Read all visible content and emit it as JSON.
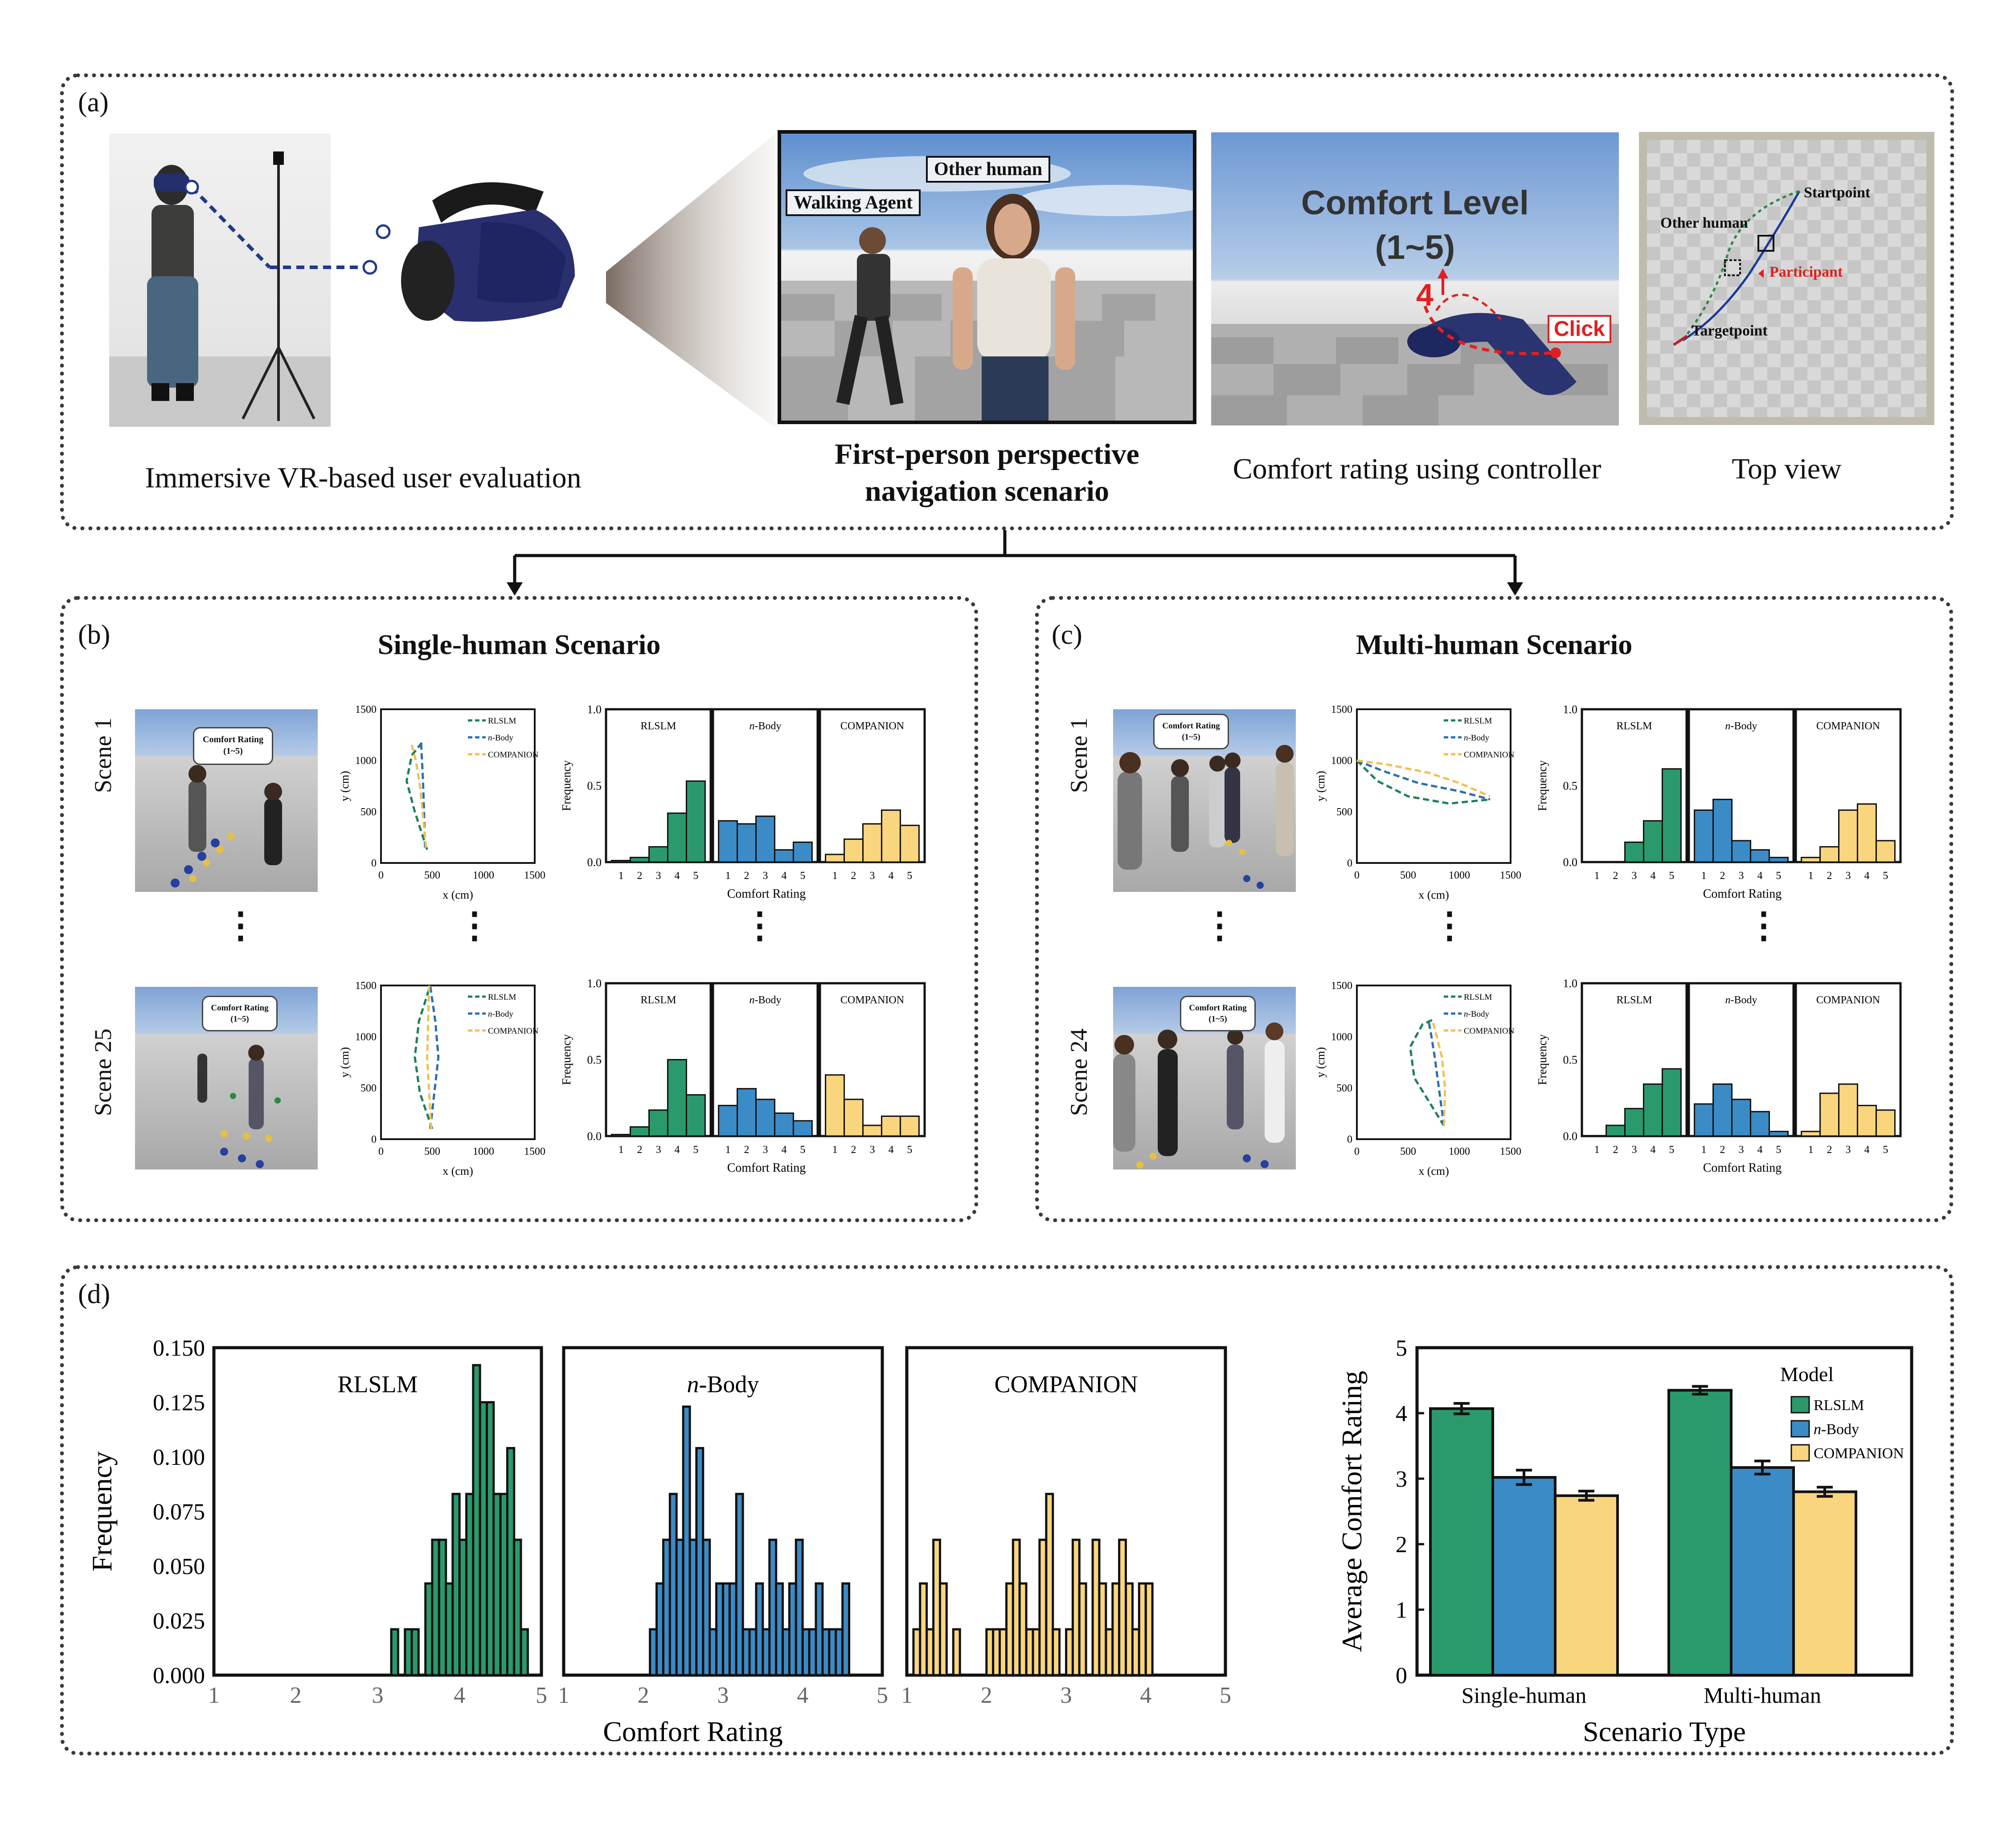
{
  "colors": {
    "rlslm": "#2a9a6c",
    "nbody": "#3b8bc6",
    "companion": "#f9d57e",
    "border": "#3a3a3a"
  },
  "panel_a": {
    "label": "(a)",
    "caption_vr": "Immersive VR-based user evaluation",
    "caption_fp_line1": "First-person perspective",
    "caption_fp_line2": "navigation scenario",
    "caption_comfort": "Comfort rating using controller",
    "caption_top": "Top view",
    "fp_tag_other": "Other human",
    "fp_tag_agent": "Walking Agent",
    "comfort_title": "Comfort Level",
    "comfort_range": "(1~5)",
    "comfort_value": "4",
    "comfort_click": "Click",
    "top_startpoint": "Startpoint",
    "top_other": "Other human",
    "top_participant": "Participant",
    "top_targetpoint": "Targetpoint"
  },
  "panel_b": {
    "label": "(b)",
    "title": "Single-human Scenario",
    "scene_top": "Scene 1",
    "scene_bottom": "Scene 25",
    "bubble_line1": "Comfort Rating",
    "bubble_line2": "(1~5)"
  },
  "panel_c": {
    "label": "(c)",
    "title": "Multi-human Scenario",
    "scene_top": "Scene 1",
    "scene_bottom": "Scene 24",
    "bubble_line1": "Comfort Rating",
    "bubble_line2": "(1~5)"
  },
  "panel_d": {
    "label": "(d)"
  },
  "mini": {
    "traj_xlabel": "x (cm)",
    "traj_ylabel": "y (cm)",
    "traj_xticks": [
      "0",
      "500",
      "1000",
      "1500"
    ],
    "traj_yticks": [
      "0",
      "500",
      "1000",
      "1500"
    ],
    "legend": [
      "RLSLM",
      "n-Body",
      "COMPANION"
    ],
    "freq_label": "Frequency",
    "xlabel": "Comfort Rating",
    "freq_ticks": [
      "0.0",
      "0.5",
      "1.0"
    ],
    "xticks": [
      "1",
      "2",
      "3",
      "4",
      "5"
    ],
    "names": [
      "RLSLM",
      "n-Body",
      "COMPANION"
    ]
  },
  "chart_data": [
    {
      "type": "bar",
      "id": "b-scene1-hist",
      "categories": [
        "1",
        "2",
        "3",
        "4",
        "5"
      ],
      "ylabel": "Frequency",
      "xlabel": "Comfort Rating",
      "ylim": [
        0,
        1
      ],
      "series": [
        {
          "name": "RLSLM",
          "values": [
            0.01,
            0.03,
            0.1,
            0.32,
            0.53
          ]
        },
        {
          "name": "n-Body",
          "values": [
            0.27,
            0.25,
            0.3,
            0.08,
            0.13
          ]
        },
        {
          "name": "COMPANION",
          "values": [
            0.05,
            0.15,
            0.25,
            0.34,
            0.24
          ]
        }
      ]
    },
    {
      "type": "bar",
      "id": "b-scene25-hist",
      "categories": [
        "1",
        "2",
        "3",
        "4",
        "5"
      ],
      "ylabel": "Frequency",
      "xlabel": "Comfort Rating",
      "ylim": [
        0,
        1
      ],
      "series": [
        {
          "name": "RLSLM",
          "values": [
            0.01,
            0.06,
            0.17,
            0.5,
            0.27
          ]
        },
        {
          "name": "n-Body",
          "values": [
            0.2,
            0.31,
            0.24,
            0.15,
            0.1
          ]
        },
        {
          "name": "COMPANION",
          "values": [
            0.4,
            0.24,
            0.07,
            0.13,
            0.13
          ]
        }
      ]
    },
    {
      "type": "bar",
      "id": "c-scene1-hist",
      "categories": [
        "1",
        "2",
        "3",
        "4",
        "5"
      ],
      "ylabel": "Frequency",
      "xlabel": "Comfort Rating",
      "ylim": [
        0,
        1
      ],
      "series": [
        {
          "name": "RLSLM",
          "values": [
            0.0,
            0.0,
            0.13,
            0.27,
            0.61
          ]
        },
        {
          "name": "n-Body",
          "values": [
            0.34,
            0.41,
            0.14,
            0.08,
            0.03
          ]
        },
        {
          "name": "COMPANION",
          "values": [
            0.03,
            0.1,
            0.34,
            0.38,
            0.14
          ]
        }
      ]
    },
    {
      "type": "bar",
      "id": "c-scene24-hist",
      "categories": [
        "1",
        "2",
        "3",
        "4",
        "5"
      ],
      "ylabel": "Frequency",
      "xlabel": "Comfort Rating",
      "ylim": [
        0,
        1
      ],
      "series": [
        {
          "name": "RLSLM",
          "values": [
            0.0,
            0.07,
            0.18,
            0.34,
            0.44
          ]
        },
        {
          "name": "n-Body",
          "values": [
            0.21,
            0.34,
            0.24,
            0.16,
            0.03
          ]
        },
        {
          "name": "COMPANION",
          "values": [
            0.03,
            0.28,
            0.34,
            0.2,
            0.17
          ]
        }
      ]
    },
    {
      "type": "line",
      "id": "b-scene1-traj",
      "xlabel": "x (cm)",
      "ylabel": "y (cm)",
      "xlim": [
        0,
        1500
      ],
      "ylim": [
        0,
        1500
      ],
      "series": [
        {
          "name": "RLSLM",
          "x": [
            450,
            330,
            250,
            300,
            420
          ],
          "y": [
            130,
            500,
            800,
            1050,
            1200
          ]
        },
        {
          "name": "n-Body",
          "x": [
            430,
            420,
            410,
            400,
            390
          ],
          "y": [
            150,
            500,
            800,
            1000,
            1200
          ]
        },
        {
          "name": "COMPANION",
          "x": [
            440,
            410,
            380,
            340,
            300
          ],
          "y": [
            150,
            450,
            750,
            1000,
            1150
          ]
        }
      ]
    },
    {
      "type": "line",
      "id": "b-scene25-traj",
      "xlabel": "x (cm)",
      "ylabel": "y (cm)",
      "xlim": [
        0,
        1500
      ],
      "ylim": [
        0,
        1500
      ],
      "series": [
        {
          "name": "RLSLM",
          "x": [
            500,
            380,
            330,
            370,
            480
          ],
          "y": [
            100,
            450,
            800,
            1150,
            1500
          ]
        },
        {
          "name": "n-Body",
          "x": [
            480,
            520,
            560,
            530,
            480
          ],
          "y": [
            100,
            450,
            800,
            1150,
            1500
          ]
        },
        {
          "name": "COMPANION",
          "x": [
            490,
            470,
            450,
            460,
            470
          ],
          "y": [
            100,
            450,
            800,
            1150,
            1500
          ]
        }
      ]
    },
    {
      "type": "line",
      "id": "c-scene1-traj",
      "xlabel": "x (cm)",
      "ylabel": "y (cm)",
      "xlim": [
        0,
        1500
      ],
      "ylim": [
        0,
        1500
      ],
      "series": [
        {
          "name": "RLSLM",
          "x": [
            0,
            200,
            500,
            900,
            1300
          ],
          "y": [
            1000,
            800,
            650,
            580,
            620
          ]
        },
        {
          "name": "n-Body",
          "x": [
            0,
            250,
            600,
            1000,
            1300
          ],
          "y": [
            1000,
            900,
            780,
            700,
            620
          ]
        },
        {
          "name": "COMPANION",
          "x": [
            0,
            300,
            700,
            1000,
            1300
          ],
          "y": [
            1000,
            960,
            880,
            780,
            650
          ]
        }
      ]
    },
    {
      "type": "line",
      "id": "c-scene24-traj",
      "xlabel": "x (cm)",
      "ylabel": "y (cm)",
      "xlim": [
        0,
        1500
      ],
      "ylim": [
        0,
        1500
      ],
      "series": [
        {
          "name": "RLSLM",
          "x": [
            850,
            560,
            520,
            640,
            750
          ],
          "y": [
            130,
            600,
            900,
            1120,
            1170
          ]
        },
        {
          "name": "n-Body",
          "x": [
            850,
            800,
            760,
            720,
            700
          ],
          "y": [
            130,
            500,
            800,
            1050,
            1150
          ]
        },
        {
          "name": "COMPANION",
          "x": [
            850,
            860,
            830,
            780,
            740
          ],
          "y": [
            130,
            500,
            800,
            1000,
            1150
          ]
        }
      ]
    },
    {
      "type": "bar",
      "id": "d-hist",
      "title": "",
      "xlabel": "Comfort Rating",
      "ylabel": "Frequency",
      "xlim": [
        1,
        5
      ],
      "ylim": [
        0,
        0.15
      ],
      "yticks": [
        "0.000",
        "0.025",
        "0.050",
        "0.075",
        "0.100",
        "0.125",
        "0.150"
      ],
      "xticks": [
        "1",
        "2",
        "3",
        "4",
        "5"
      ],
      "series": [
        {
          "name": "RLSLM",
          "bin_width": 0.0833,
          "x": [
            3.125,
            3.208,
            3.292,
            3.375,
            3.458,
            3.542,
            3.625,
            3.708,
            3.792,
            3.875,
            3.958,
            4.042,
            4.125,
            4.208,
            4.292,
            4.375,
            4.458,
            4.542,
            4.625,
            4.708,
            4.792
          ],
          "values": [
            0.0,
            0.021,
            0.0,
            0.021,
            0.021,
            0.0,
            0.042,
            0.062,
            0.062,
            0.042,
            0.083,
            0.062,
            0.083,
            0.142,
            0.125,
            0.125,
            0.083,
            0.083,
            0.104,
            0.062,
            0.021
          ]
        },
        {
          "name": "n-Body",
          "bin_width": 0.0833,
          "x": [
            2.125,
            2.208,
            2.292,
            2.375,
            2.458,
            2.542,
            2.625,
            2.708,
            2.792,
            2.875,
            2.958,
            3.042,
            3.125,
            3.208,
            3.292,
            3.375,
            3.458,
            3.542,
            3.625,
            3.708,
            3.792,
            3.875,
            3.958,
            4.042,
            4.125,
            4.208,
            4.292,
            4.375,
            4.458,
            4.542
          ],
          "values": [
            0.021,
            0.042,
            0.062,
            0.083,
            0.062,
            0.123,
            0.062,
            0.104,
            0.062,
            0.021,
            0.042,
            0.042,
            0.042,
            0.083,
            0.021,
            0.021,
            0.042,
            0.021,
            0.062,
            0.042,
            0.021,
            0.042,
            0.062,
            0.021,
            0.021,
            0.042,
            0.021,
            0.021,
            0.021,
            0.042
          ]
        },
        {
          "name": "COMPANION",
          "bin_width": 0.0833,
          "x": [
            1.125,
            1.208,
            1.292,
            1.375,
            1.458,
            1.542,
            1.625,
            1.708,
            1.792,
            1.875,
            1.958,
            2.042,
            2.125,
            2.208,
            2.292,
            2.375,
            2.458,
            2.542,
            2.625,
            2.708,
            2.792,
            2.875,
            2.958,
            3.042,
            3.125,
            3.208,
            3.292,
            3.375,
            3.458,
            3.542,
            3.625,
            3.708,
            3.792,
            3.875,
            3.958,
            4.042
          ],
          "values": [
            0.021,
            0.042,
            0.021,
            0.062,
            0.042,
            0.0,
            0.021,
            0.0,
            0.0,
            0.0,
            0.0,
            0.021,
            0.021,
            0.021,
            0.042,
            0.062,
            0.042,
            0.021,
            0.021,
            0.062,
            0.083,
            0.021,
            0.0,
            0.021,
            0.062,
            0.042,
            0.0,
            0.062,
            0.042,
            0.021,
            0.042,
            0.062,
            0.042,
            0.021,
            0.042,
            0.042
          ]
        }
      ]
    },
    {
      "type": "bar",
      "id": "d-avg",
      "xlabel": "Scenario Type",
      "ylabel": "Average Comfort Rating",
      "ylim": [
        0,
        5
      ],
      "yticks": [
        "0",
        "1",
        "2",
        "3",
        "4",
        "5"
      ],
      "categories": [
        "Single-human",
        "Multi-human"
      ],
      "legend_title": "Model",
      "series": [
        {
          "name": "RLSLM",
          "values": [
            4.07,
            4.35
          ],
          "error": [
            0.08,
            0.06
          ]
        },
        {
          "name": "n-Body",
          "values": [
            3.02,
            3.17
          ],
          "error": [
            0.11,
            0.1
          ]
        },
        {
          "name": "COMPANION",
          "values": [
            2.74,
            2.8
          ],
          "error": [
            0.07,
            0.07
          ]
        }
      ]
    }
  ]
}
